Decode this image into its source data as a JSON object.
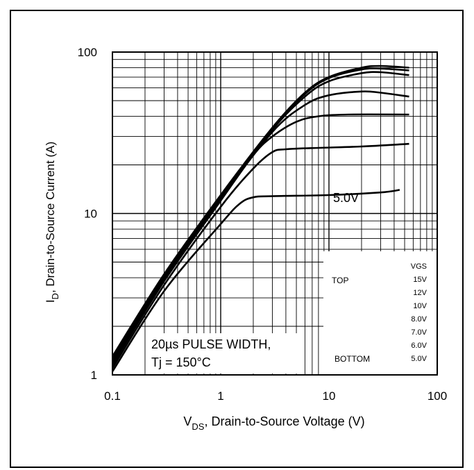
{
  "chart_data": {
    "type": "line",
    "x_scale": "log",
    "y_scale": "log",
    "xlim": [
      0.1,
      100
    ],
    "ylim": [
      1,
      100
    ],
    "grid": true,
    "x_ticks": [
      "0.1",
      "1",
      "10",
      "100"
    ],
    "y_ticks": [
      "1",
      "10",
      "100"
    ],
    "xlabel": {
      "v": "V",
      "sub": "DS",
      "rest": ", Drain-to-Source Voltage (V)"
    },
    "ylabel": {
      "i": "I",
      "sub": "D",
      "rest": ", Drain-to-Source Current (A)"
    },
    "annotations": {
      "pulse": "20µs PULSE WIDTH,",
      "tj": "Tj = 150°C",
      "curve_label": "5.0V"
    },
    "legend": {
      "placement": "bottom-right",
      "header": "VGS",
      "top_label": "TOP",
      "bottom_label": "BOTTOM",
      "entries": [
        "15V",
        "12V",
        "10V",
        "8.0V",
        "7.0V",
        "6.0V",
        "5.0V"
      ]
    },
    "series": [
      {
        "points": [
          [
            0.1,
            1.3
          ],
          [
            0.3,
            4.2
          ],
          [
            1,
            13
          ],
          [
            3,
            34
          ],
          [
            6,
            56
          ],
          [
            10,
            70
          ],
          [
            20,
            80
          ],
          [
            30,
            82
          ],
          [
            55,
            80
          ]
        ]
      },
      {
        "points": [
          [
            0.1,
            1.27
          ],
          [
            0.3,
            4.1
          ],
          [
            1,
            12.8
          ],
          [
            3,
            33.5
          ],
          [
            6,
            55
          ],
          [
            10,
            69
          ],
          [
            20,
            78
          ],
          [
            30,
            79
          ],
          [
            55,
            77
          ]
        ]
      },
      {
        "points": [
          [
            0.1,
            1.24
          ],
          [
            0.3,
            4.0
          ],
          [
            1,
            12.6
          ],
          [
            3,
            33
          ],
          [
            6,
            53
          ],
          [
            10,
            66
          ],
          [
            20,
            74
          ],
          [
            30,
            75
          ],
          [
            55,
            72
          ]
        ]
      },
      {
        "points": [
          [
            0.1,
            1.2
          ],
          [
            0.3,
            3.9
          ],
          [
            1,
            12.3
          ],
          [
            3,
            32
          ],
          [
            6,
            47
          ],
          [
            10,
            54
          ],
          [
            20,
            57
          ],
          [
            30,
            56
          ],
          [
            55,
            53
          ]
        ]
      },
      {
        "points": [
          [
            0.1,
            1.15
          ],
          [
            0.3,
            3.8
          ],
          [
            1,
            12
          ],
          [
            2,
            23
          ],
          [
            3,
            30
          ],
          [
            5,
            37
          ],
          [
            8,
            40
          ],
          [
            15,
            41
          ],
          [
            55,
            41
          ]
        ]
      },
      {
        "points": [
          [
            0.1,
            1.1
          ],
          [
            0.3,
            3.6
          ],
          [
            1,
            11
          ],
          [
            2,
            19
          ],
          [
            3,
            24
          ],
          [
            4,
            25
          ],
          [
            8,
            25.5
          ],
          [
            20,
            26
          ],
          [
            55,
            27
          ]
        ]
      },
      {
        "points": [
          [
            0.1,
            1.05
          ],
          [
            0.3,
            3.3
          ],
          [
            1,
            8.6
          ],
          [
            1.5,
            11.5
          ],
          [
            2,
            12.6
          ],
          [
            3,
            12.8
          ],
          [
            10,
            13
          ],
          [
            30,
            13.5
          ],
          [
            45,
            14
          ]
        ]
      }
    ]
  }
}
